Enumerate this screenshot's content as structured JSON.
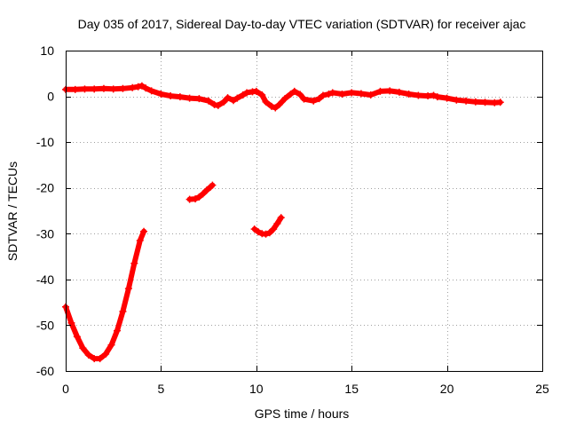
{
  "chart_data": {
    "type": "scatter",
    "title": "Day 035 of 2017, Sidereal Day-to-day VTEC variation (SDTVAR) for receiver ajac",
    "xlabel": "GPS time / hours",
    "ylabel": "SDTVAR / TECUs",
    "xlim": [
      0,
      25
    ],
    "ylim": [
      -60,
      10
    ],
    "xticks": [
      0,
      5,
      10,
      15,
      20,
      25
    ],
    "yticks": [
      10,
      0,
      -10,
      -20,
      -30,
      -40,
      -50,
      -60
    ],
    "xtick_labels": [
      "0",
      "5",
      "10",
      "15",
      "20",
      "25"
    ],
    "ytick_labels": [
      "10",
      "0",
      "-10",
      "-20",
      "-30",
      "-40",
      "-50",
      "-60"
    ],
    "grid": true,
    "marker_color": "#ff0000",
    "series": [
      {
        "name": "main-arc",
        "x": [
          0.0,
          0.5,
          1.0,
          1.5,
          2.0,
          2.5,
          3.0,
          3.5,
          3.8,
          4.0,
          4.2,
          4.5,
          5.0,
          5.5,
          6.0,
          6.5,
          7.0,
          7.5,
          7.8,
          8.0,
          8.3,
          8.5,
          8.8,
          9.0,
          9.3,
          9.5,
          9.8,
          10.0,
          10.3,
          10.5,
          10.8,
          11.0,
          11.2,
          11.5,
          11.8,
          12.0,
          12.3,
          12.5,
          13.0,
          13.3,
          13.5,
          13.8,
          14.0,
          14.5,
          15.0,
          15.5,
          16.0,
          16.5,
          17.0,
          17.5,
          18.0,
          18.5,
          19.0,
          19.3,
          19.5,
          20.0,
          20.5,
          21.0,
          21.5,
          22.0,
          22.5,
          22.8
        ],
        "y": [
          1.5,
          1.5,
          1.6,
          1.6,
          1.7,
          1.6,
          1.7,
          1.9,
          2.1,
          2.3,
          1.8,
          1.2,
          0.5,
          0.1,
          -0.1,
          -0.4,
          -0.5,
          -1.0,
          -1.8,
          -2.0,
          -1.2,
          -0.3,
          -0.9,
          -0.4,
          0.3,
          0.8,
          1.0,
          1.1,
          0.3,
          -1.2,
          -2.2,
          -2.5,
          -1.8,
          -0.5,
          0.5,
          1.1,
          0.4,
          -0.6,
          -1.0,
          -0.5,
          0.2,
          0.5,
          0.8,
          0.5,
          0.8,
          0.6,
          0.3,
          1.1,
          1.2,
          0.9,
          0.5,
          0.2,
          0.1,
          0.2,
          -0.1,
          -0.4,
          -0.8,
          -1.0,
          -1.2,
          -1.3,
          -1.4,
          -1.3
        ]
      },
      {
        "name": "left-dip-arc",
        "x": [
          0.0,
          0.3,
          0.6,
          0.9,
          1.2,
          1.5,
          1.8,
          2.1,
          2.4,
          2.7,
          3.0,
          3.3,
          3.6,
          3.9,
          4.1
        ],
        "y": [
          -46.0,
          -49.5,
          -52.5,
          -55.0,
          -56.5,
          -57.3,
          -57.3,
          -56.3,
          -54.3,
          -51.2,
          -47.0,
          -42.0,
          -36.5,
          -31.5,
          -29.5
        ]
      },
      {
        "name": "segment-7h",
        "x": [
          6.5,
          6.8,
          7.0,
          7.2,
          7.4,
          7.6,
          7.7
        ],
        "y": [
          -22.5,
          -22.4,
          -22.0,
          -21.3,
          -20.5,
          -19.8,
          -19.4
        ]
      },
      {
        "name": "segment-10h",
        "x": [
          9.9,
          10.1,
          10.3,
          10.5,
          10.7,
          10.9,
          11.1,
          11.3
        ],
        "y": [
          -29.0,
          -29.6,
          -30.0,
          -30.1,
          -29.8,
          -29.0,
          -27.8,
          -26.5
        ]
      }
    ]
  }
}
